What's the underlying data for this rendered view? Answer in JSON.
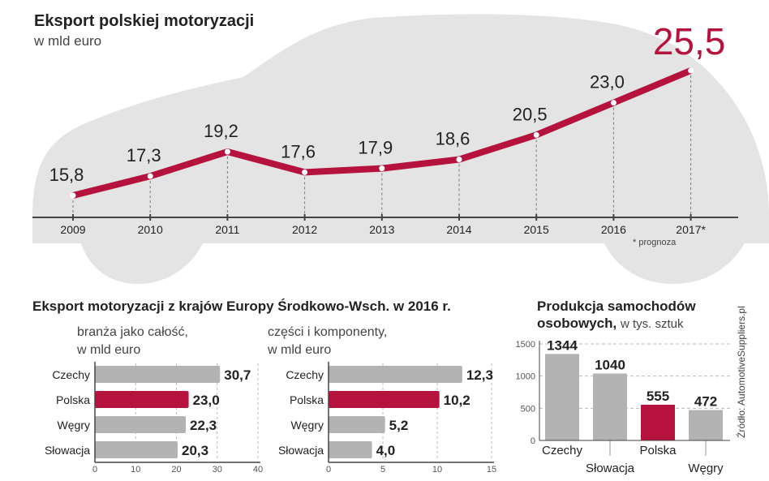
{
  "colors": {
    "accent": "#b5123e",
    "bar": "#b3b3b3",
    "car": "#e4e4e4",
    "text": "#222222"
  },
  "chart_data": [
    {
      "type": "line",
      "title": "Eksport polskiej motoryzacji",
      "subtitle": "w mld euro",
      "categories": [
        "2009",
        "2010",
        "2011",
        "2012",
        "2013",
        "2014",
        "2015",
        "2016",
        "2017*"
      ],
      "values": [
        15.8,
        17.3,
        19.2,
        17.6,
        17.9,
        18.6,
        20.5,
        23.0,
        25.5
      ],
      "labels": [
        "15,8",
        "17,3",
        "19,2",
        "17,6",
        "17,9",
        "18,6",
        "20,5",
        "23,0",
        "25,5"
      ],
      "note": "* prognoza"
    },
    {
      "type": "bar",
      "title": "Eksport motoryzacji z krajów Europy Środkowo-Wsch. w 2016 r.",
      "subtitle": "branża jako całość,",
      "subtitle2": "w mld euro",
      "categories": [
        "Czechy",
        "Polska",
        "Węgry",
        "Słowacja"
      ],
      "values": [
        30.7,
        23.0,
        22.3,
        20.3
      ],
      "labels": [
        "30,7",
        "23,0",
        "22,3",
        "20,3"
      ],
      "highlight": "Polska",
      "xlim": [
        0,
        40
      ],
      "ticks": [
        "0",
        "10",
        "20",
        "30",
        "40"
      ]
    },
    {
      "type": "bar",
      "subtitle": "części i komponenty,",
      "subtitle2": "w mld euro",
      "categories": [
        "Czechy",
        "Polska",
        "Węgry",
        "Słowacja"
      ],
      "values": [
        12.3,
        10.2,
        5.2,
        4.0
      ],
      "labels": [
        "12,3",
        "10,2",
        "5,2",
        "4,0"
      ],
      "highlight": "Polska",
      "xlim": [
        0,
        15
      ],
      "ticks": [
        "0",
        "5",
        "10",
        "15"
      ]
    },
    {
      "type": "bar",
      "title": "Produkcja samochodów",
      "title2": "osobowych,",
      "subtitle": "w tys. sztuk",
      "categories": [
        "Czechy",
        "Słowacja",
        "Polska",
        "Węgry"
      ],
      "values": [
        1344,
        1040,
        555,
        472
      ],
      "labels": [
        "1344",
        "1040",
        "555",
        "472"
      ],
      "highlight": "Polska",
      "ylim": [
        0,
        1500
      ],
      "ticks": [
        "0",
        "500",
        "1000",
        "1500"
      ]
    }
  ],
  "source": "Źródło: AutomotiveSuppliers.pl"
}
